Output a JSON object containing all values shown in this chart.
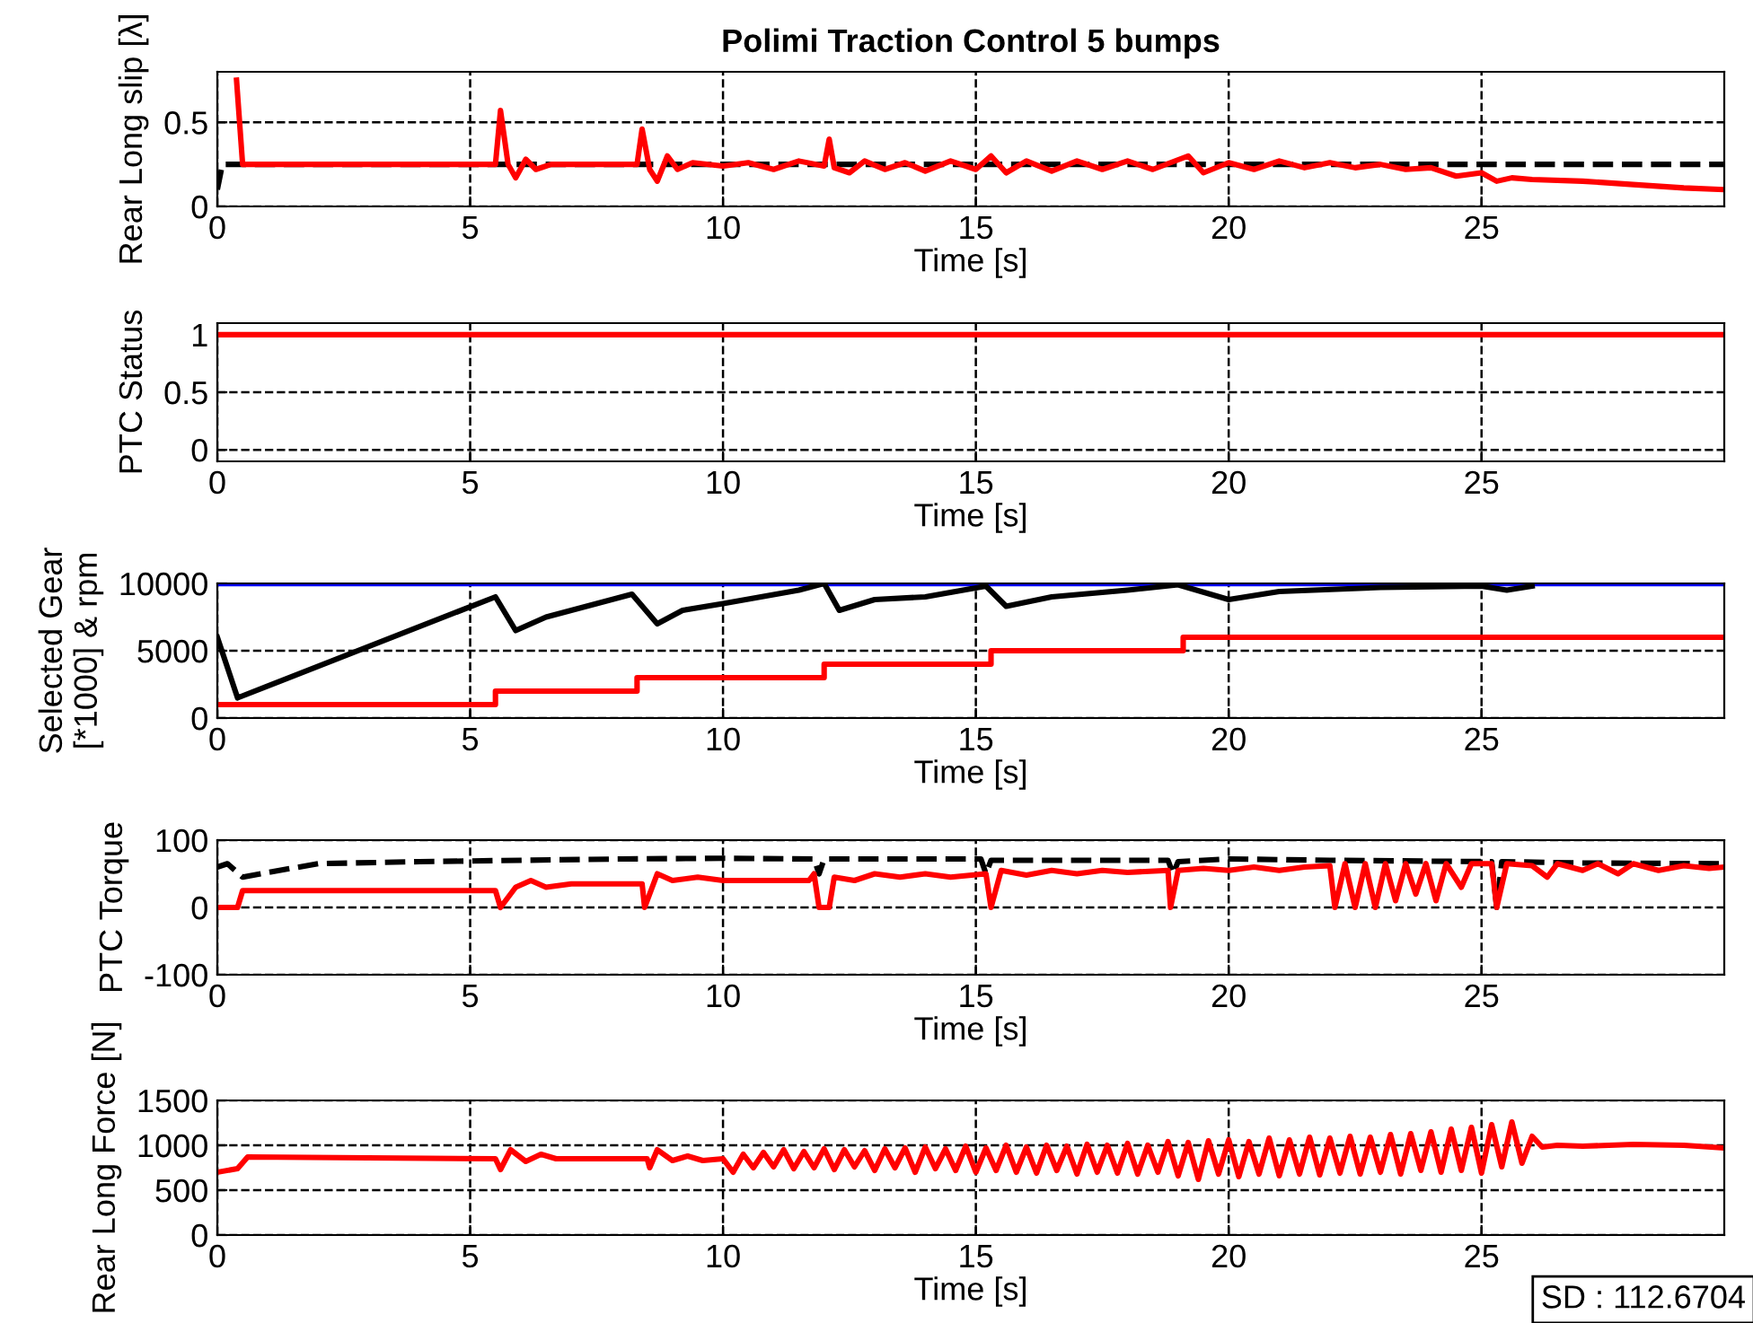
{
  "chart_data": [
    {
      "type": "line",
      "title": "Polimi Traction Control 5 bumps",
      "xlabel": "Time [s]",
      "ylabel": "Rear Long slip [λ]",
      "xlim": [
        0,
        29.8
      ],
      "xticks": [
        0,
        5,
        10,
        15,
        20,
        25
      ],
      "ylim": [
        0,
        0.8
      ],
      "yticks": [
        0,
        0.5
      ],
      "grid": true,
      "series": [
        {
          "color": "#000000",
          "line_style": "dashed",
          "x": [
            0,
            0.1,
            29.8
          ],
          "values": [
            0.1,
            0.25,
            0.25
          ]
        },
        {
          "color": "#ff0000",
          "line_style": "solid",
          "x": [
            0.38,
            0.5,
            5.5,
            5.6,
            5.75,
            5.9,
            6.1,
            6.3,
            6.6,
            8.3,
            8.4,
            8.55,
            8.7,
            8.9,
            9.1,
            9.4,
            10,
            10.5,
            11,
            11.5,
            12,
            12.1,
            12.2,
            12.5,
            12.8,
            13.2,
            13.6,
            14,
            14.5,
            15,
            15.3,
            15.6,
            16,
            16.5,
            17,
            17.5,
            18,
            18.5,
            19.2,
            19.5,
            20,
            20.5,
            21,
            21.5,
            22,
            22.5,
            23,
            23.5,
            24,
            24.5,
            25,
            25.3,
            25.6,
            26,
            27,
            28,
            29,
            29.8
          ],
          "values": [
            0.75,
            0.25,
            0.25,
            0.57,
            0.25,
            0.17,
            0.28,
            0.22,
            0.25,
            0.25,
            0.46,
            0.22,
            0.15,
            0.3,
            0.22,
            0.26,
            0.24,
            0.26,
            0.22,
            0.27,
            0.24,
            0.4,
            0.23,
            0.2,
            0.27,
            0.22,
            0.26,
            0.21,
            0.27,
            0.22,
            0.3,
            0.2,
            0.27,
            0.21,
            0.27,
            0.22,
            0.27,
            0.22,
            0.3,
            0.2,
            0.26,
            0.22,
            0.27,
            0.23,
            0.26,
            0.23,
            0.25,
            0.22,
            0.23,
            0.18,
            0.2,
            0.15,
            0.17,
            0.16,
            0.15,
            0.13,
            0.11,
            0.1
          ]
        }
      ]
    },
    {
      "type": "line",
      "xlabel": "Time [s]",
      "ylabel": "PTC Status",
      "xlim": [
        0,
        29.8
      ],
      "xticks": [
        0,
        5,
        10,
        15,
        20,
        25
      ],
      "ylim": [
        -0.1,
        1.1
      ],
      "yticks": [
        0,
        0.5,
        1
      ],
      "grid": true,
      "series": [
        {
          "color": "#ff0000",
          "line_style": "solid",
          "x": [
            0,
            29.8
          ],
          "values": [
            1,
            1
          ]
        }
      ]
    },
    {
      "type": "line",
      "xlabel": "Time [s]",
      "ylabel": "Selected Gear\n[*1000] & rpm",
      "xlim": [
        0,
        29.8
      ],
      "xticks": [
        0,
        5,
        10,
        15,
        20,
        25
      ],
      "ylim": [
        0,
        10000
      ],
      "yticks": [
        0,
        5000,
        10000
      ],
      "grid": true,
      "series": [
        {
          "color": "#0000ff",
          "line_style": "solid",
          "x": [
            0,
            29.8
          ],
          "values": [
            9900,
            9900
          ]
        },
        {
          "color": "#000000",
          "line_style": "solid",
          "x": [
            0,
            0.4,
            5.5,
            5.9,
            6.5,
            7.5,
            8.2,
            8.7,
            9.2,
            10,
            11.5,
            12,
            12.3,
            13,
            14,
            15.2,
            15.6,
            16.5,
            18,
            19,
            20,
            21,
            23,
            25,
            25.5,
            26
          ],
          "values": [
            6000,
            1500,
            9000,
            6500,
            7500,
            8500,
            9200,
            7000,
            8000,
            8500,
            9500,
            10000,
            8000,
            8800,
            9000,
            9800,
            8300,
            9000,
            9500,
            9900,
            8800,
            9400,
            9700,
            9800,
            9500,
            9800
          ]
        },
        {
          "type": "step",
          "color": "#ff0000",
          "line_style": "solid",
          "x": [
            0,
            5.5,
            8.3,
            12,
            15.3,
            19.1,
            29.8
          ],
          "values": [
            1000,
            2000,
            3000,
            4000,
            5000,
            6000,
            6000
          ]
        }
      ]
    },
    {
      "type": "line",
      "xlabel": "Time [s]",
      "ylabel": "PTC Torque",
      "xlim": [
        0,
        29.8
      ],
      "xticks": [
        0,
        5,
        10,
        15,
        20,
        25
      ],
      "ylim": [
        -100,
        100
      ],
      "yticks": [
        -100,
        0,
        100
      ],
      "grid": true,
      "series": [
        {
          "color": "#000000",
          "line_style": "dashed",
          "x": [
            0,
            0.2,
            0.5,
            1,
            2,
            4,
            6,
            8,
            10,
            11.8,
            11.9,
            12,
            15.1,
            15.2,
            15.3,
            18.8,
            18.9,
            19,
            20,
            22,
            25.2,
            25.3,
            25.4,
            27,
            29.8
          ],
          "values": [
            60,
            65,
            45,
            52,
            65,
            68,
            70,
            72,
            73,
            72,
            50,
            72,
            72,
            50,
            70,
            70,
            50,
            68,
            72,
            70,
            68,
            0,
            68,
            66,
            65
          ]
        },
        {
          "color": "#ff0000",
          "line_style": "solid",
          "x": [
            0,
            0.4,
            0.5,
            5.5,
            5.6,
            5.9,
            6.2,
            6.5,
            7,
            8.4,
            8.45,
            8.7,
            9,
            9.5,
            10,
            11.7,
            11.8,
            11.9,
            12.1,
            12.2,
            12.6,
            13,
            13.5,
            14,
            14.5,
            15.2,
            15.3,
            15.5,
            16,
            16.5,
            17,
            17.5,
            18,
            18.8,
            18.85,
            19,
            19.5,
            20,
            20.5,
            21,
            21.5,
            22,
            22.1,
            22.3,
            22.5,
            22.7,
            22.9,
            23.1,
            23.3,
            23.5,
            23.7,
            23.9,
            24.1,
            24.3,
            24.6,
            24.8,
            25.2,
            25.3,
            25.5,
            26,
            26.3,
            26.5,
            27,
            27.3,
            27.7,
            28,
            28.5,
            29,
            29.5,
            29.8
          ],
          "values": [
            0,
            0,
            25,
            25,
            0,
            30,
            40,
            30,
            35,
            35,
            0,
            50,
            40,
            45,
            40,
            40,
            50,
            0,
            0,
            45,
            40,
            50,
            45,
            50,
            45,
            50,
            0,
            55,
            48,
            55,
            50,
            55,
            52,
            55,
            0,
            55,
            58,
            55,
            60,
            55,
            60,
            62,
            0,
            65,
            0,
            65,
            0,
            65,
            10,
            65,
            20,
            65,
            10,
            65,
            30,
            65,
            65,
            0,
            65,
            62,
            45,
            65,
            55,
            65,
            50,
            65,
            55,
            62,
            58,
            60
          ]
        }
      ]
    },
    {
      "type": "line",
      "xlabel": "Time [s]",
      "ylabel": "Rear Long Force [N]",
      "xlim": [
        0,
        29.8
      ],
      "xticks": [
        0,
        5,
        10,
        15,
        20,
        25
      ],
      "ylim": [
        0,
        1500
      ],
      "yticks": [
        0,
        500,
        1000,
        1500
      ],
      "grid": true,
      "annotations": [
        "SD : 112.6704"
      ],
      "series": [
        {
          "color": "#ff0000",
          "line_style": "solid",
          "x": [
            0,
            0.4,
            0.6,
            5.5,
            5.6,
            5.8,
            6.1,
            6.4,
            6.7,
            8.5,
            8.55,
            8.7,
            9,
            9.3,
            9.6,
            10,
            10.2,
            10.4,
            10.6,
            10.8,
            11,
            11.2,
            11.4,
            11.6,
            11.8,
            12,
            12.2,
            12.4,
            12.6,
            12.8,
            13,
            13.2,
            13.4,
            13.6,
            13.8,
            14,
            14.2,
            14.4,
            14.6,
            14.8,
            15,
            15.2,
            15.4,
            15.6,
            15.8,
            16,
            16.2,
            16.4,
            16.6,
            16.8,
            17,
            17.2,
            17.4,
            17.6,
            17.8,
            18,
            18.2,
            18.4,
            18.6,
            18.8,
            19,
            19.2,
            19.4,
            19.6,
            19.8,
            20,
            20.2,
            20.4,
            20.6,
            20.8,
            21,
            21.2,
            21.4,
            21.6,
            21.8,
            22,
            22.2,
            22.4,
            22.6,
            22.8,
            23,
            23.2,
            23.4,
            23.6,
            23.8,
            24,
            24.2,
            24.4,
            24.6,
            24.8,
            25,
            25.2,
            25.4,
            25.6,
            25.8,
            26,
            26.2,
            26.5,
            27,
            28,
            29,
            29.8
          ],
          "values": [
            700,
            740,
            870,
            850,
            730,
            950,
            820,
            900,
            850,
            850,
            750,
            950,
            830,
            880,
            830,
            850,
            700,
            900,
            750,
            920,
            760,
            950,
            740,
            930,
            750,
            960,
            730,
            950,
            760,
            940,
            720,
            960,
            750,
            970,
            700,
            980,
            740,
            960,
            720,
            990,
            700,
            970,
            720,
            1000,
            700,
            980,
            690,
            1000,
            720,
            990,
            680,
            1010,
            700,
            1000,
            690,
            1020,
            680,
            1000,
            700,
            1040,
            660,
            1030,
            620,
            1050,
            680,
            1060,
            650,
            1040,
            680,
            1080,
            660,
            1060,
            680,
            1090,
            670,
            1080,
            690,
            1100,
            680,
            1090,
            700,
            1120,
            680,
            1130,
            720,
            1150,
            700,
            1180,
            720,
            1200,
            690,
            1230,
            760,
            1260,
            800,
            1100,
            980,
            1000,
            990,
            1010,
            1000,
            970
          ]
        }
      ]
    }
  ]
}
